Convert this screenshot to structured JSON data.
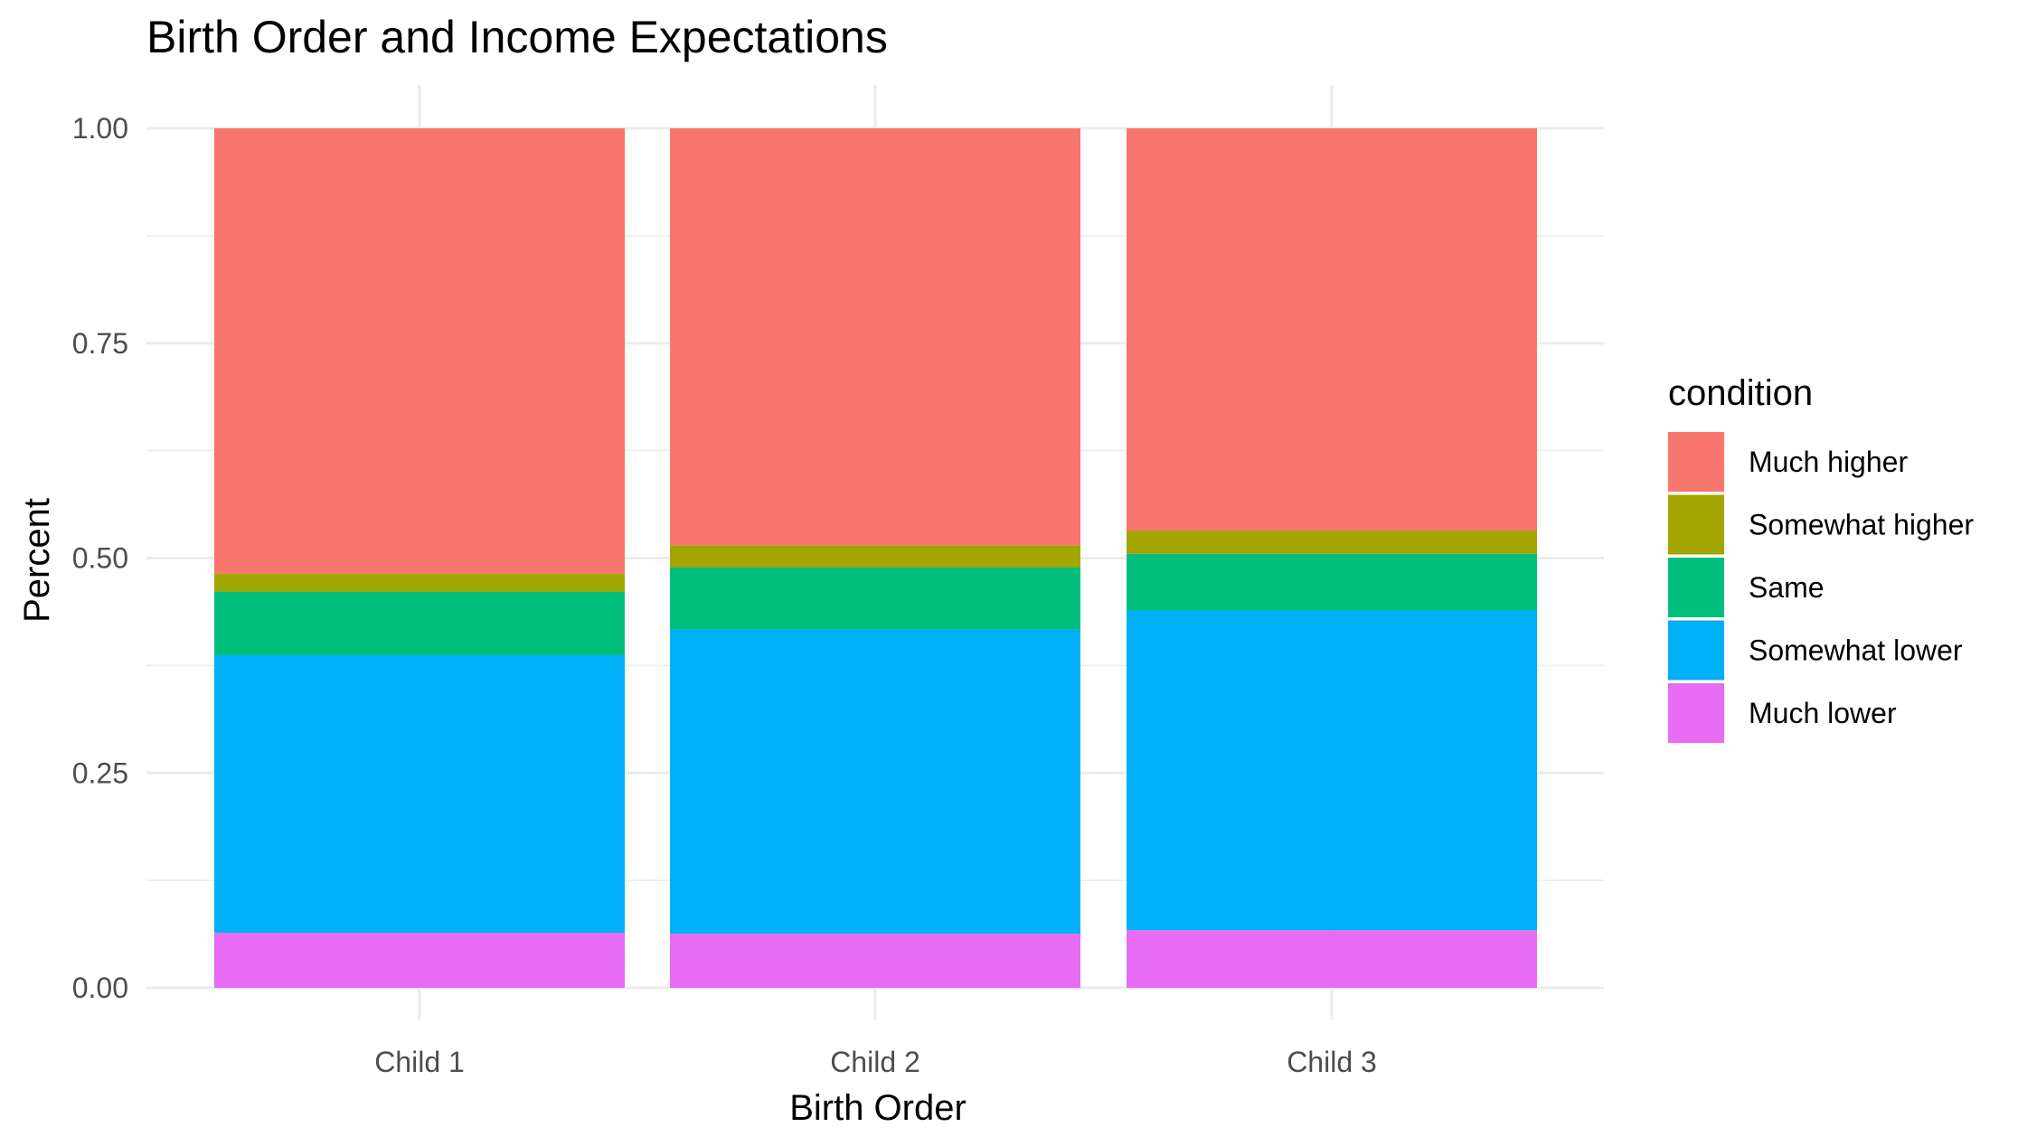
{
  "chart_data": {
    "type": "bar",
    "stacked": true,
    "title": "Birth Order and Income Expectations",
    "xlabel": "Birth Order",
    "ylabel": "Percent",
    "categories": [
      "Child 1",
      "Child 2",
      "Child 3"
    ],
    "ylim": [
      0,
      1
    ],
    "yticks": [
      "0.00",
      "0.25",
      "0.50",
      "0.75",
      "1.00"
    ],
    "grid": true,
    "legend": {
      "title": "condition",
      "position": "right"
    },
    "series": [
      {
        "name": "Much lower",
        "color": "#E76BF3",
        "values": [
          0.064,
          0.063,
          0.067
        ]
      },
      {
        "name": "Somewhat lower",
        "color": "#00B0F6",
        "values": [
          0.323,
          0.354,
          0.372
        ]
      },
      {
        "name": "Same",
        "color": "#00BF7D",
        "values": [
          0.074,
          0.072,
          0.066
        ]
      },
      {
        "name": "Somewhat higher",
        "color": "#A3A500",
        "values": [
          0.021,
          0.026,
          0.027
        ]
      },
      {
        "name": "Much higher",
        "color": "#F8766D",
        "values": [
          0.518,
          0.485,
          0.468
        ]
      }
    ],
    "legend_order": [
      "Much higher",
      "Somewhat higher",
      "Same",
      "Somewhat lower",
      "Much lower"
    ]
  }
}
